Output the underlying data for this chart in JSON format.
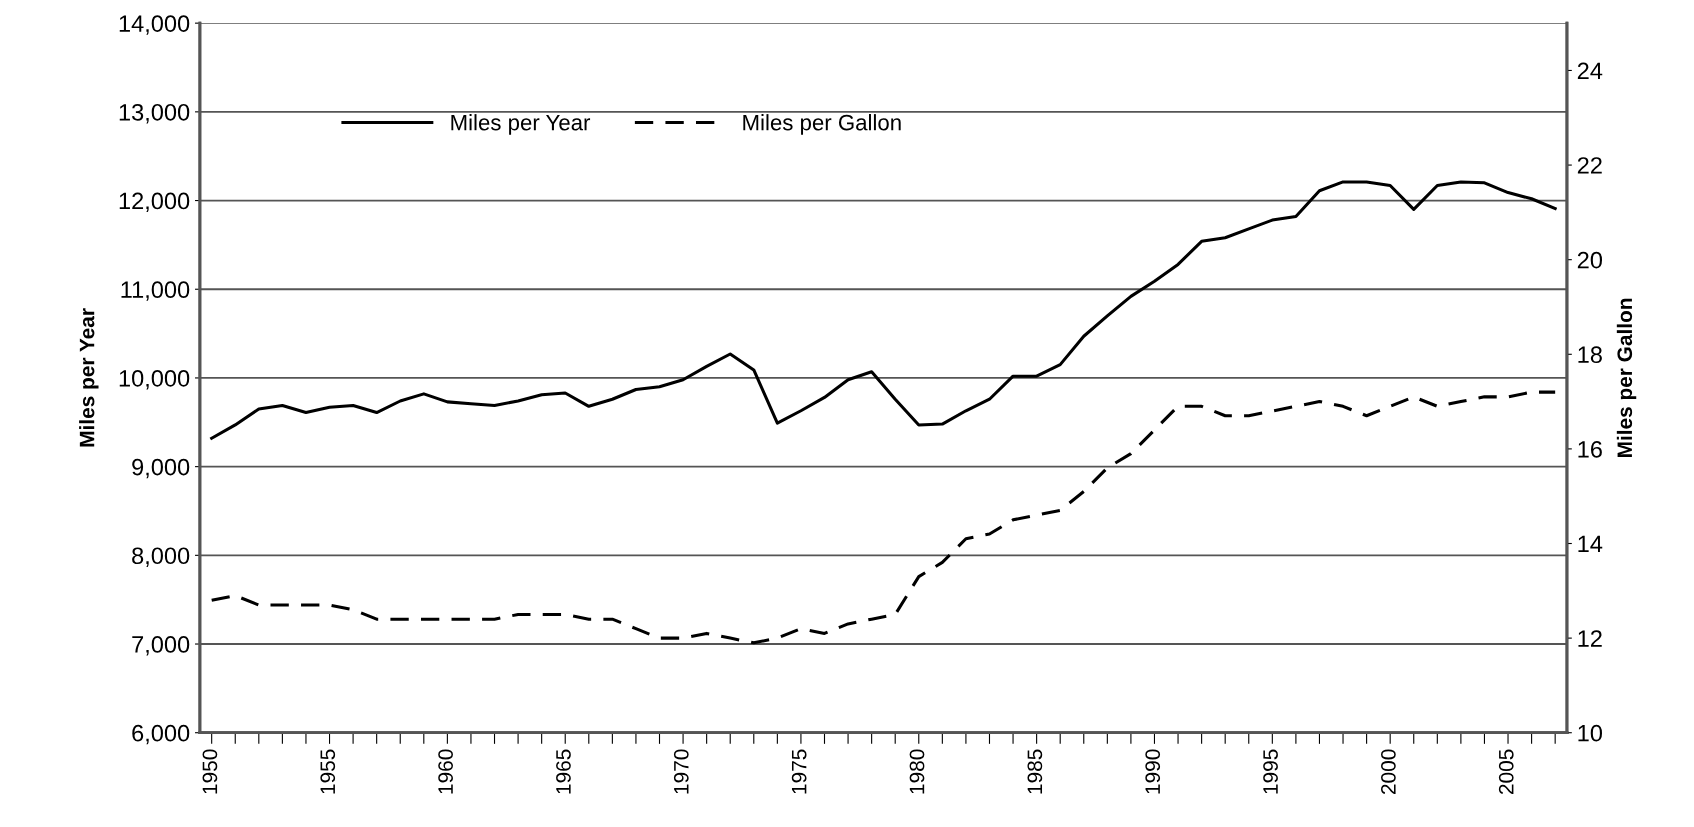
{
  "chart_data": {
    "type": "line",
    "categories": [
      "1950",
      null,
      null,
      null,
      null,
      "1955",
      null,
      null,
      null,
      null,
      "1960",
      null,
      null,
      null,
      null,
      "1965",
      null,
      null,
      null,
      null,
      "1970",
      null,
      null,
      null,
      null,
      "1975",
      null,
      null,
      null,
      null,
      "1980",
      null,
      null,
      null,
      null,
      "1985",
      null,
      null,
      null,
      null,
      "1990",
      null,
      null,
      null,
      null,
      "1995",
      null,
      null,
      null,
      null,
      "2000",
      null,
      null,
      null,
      null,
      "2005",
      null,
      null
    ],
    "ylabel": "Miles per Year",
    "y2label": "Miles per Gallon",
    "ylim": [
      6000,
      14000
    ],
    "yticks": [
      {
        "value": 6000,
        "label": "6,000"
      },
      {
        "value": 7000,
        "label": "7,000"
      },
      {
        "value": 8000,
        "label": "8,000"
      },
      {
        "value": 9000,
        "label": "9,000"
      },
      {
        "value": 10000,
        "label": "10,000"
      },
      {
        "value": 11000,
        "label": "11,000"
      },
      {
        "value": 12000,
        "label": "12,000"
      },
      {
        "value": 13000,
        "label": "13,000"
      },
      {
        "value": 14000,
        "label": "14,000"
      }
    ],
    "y2lim": [
      10,
      25
    ],
    "y2ticks": [
      10,
      12,
      14,
      16,
      18,
      20,
      22,
      24
    ],
    "grid": "y",
    "legend": "top left",
    "series": [
      {
        "name": "Miles per Year",
        "color": "#000000",
        "line_style": "solid",
        "values": [
          9320,
          9470,
          9650,
          9690,
          9610,
          9670,
          9690,
          9610,
          9740,
          9820,
          9730,
          9710,
          9690,
          9740,
          9810,
          9830,
          9680,
          9760,
          9870,
          9900,
          9980,
          10130,
          10270,
          10090,
          9490,
          9630,
          9780,
          9980,
          10070,
          9760,
          9470,
          9480,
          9630,
          9760,
          10020,
          10020,
          10150,
          10470,
          10700,
          10920,
          11090,
          11280,
          11540,
          11580,
          11680,
          11780,
          11820,
          12110,
          12210,
          12210,
          12170,
          11900,
          12170,
          12210,
          12200,
          12090,
          12020,
          11910
        ]
      },
      {
        "name": "Miles per Gallon",
        "color": "#000000",
        "line_style": "dashed",
        "axis": "y2",
        "values": [
          12.8,
          12.9,
          12.7,
          12.7,
          12.7,
          12.7,
          12.6,
          12.4,
          12.4,
          12.4,
          12.4,
          12.4,
          12.4,
          12.5,
          12.5,
          12.5,
          12.4,
          12.4,
          12.2,
          12.0,
          12.0,
          12.1,
          12.0,
          11.9,
          12.0,
          12.2,
          12.1,
          12.3,
          12.4,
          12.5,
          13.3,
          13.6,
          14.1,
          14.2,
          14.5,
          14.6,
          14.7,
          15.1,
          15.6,
          15.9,
          16.4,
          16.9,
          16.9,
          16.7,
          16.7,
          16.8,
          16.9,
          17.0,
          16.9,
          16.7,
          16.9,
          17.1,
          16.9,
          17.0,
          17.1,
          17.1,
          17.2,
          17.2
        ]
      }
    ]
  }
}
